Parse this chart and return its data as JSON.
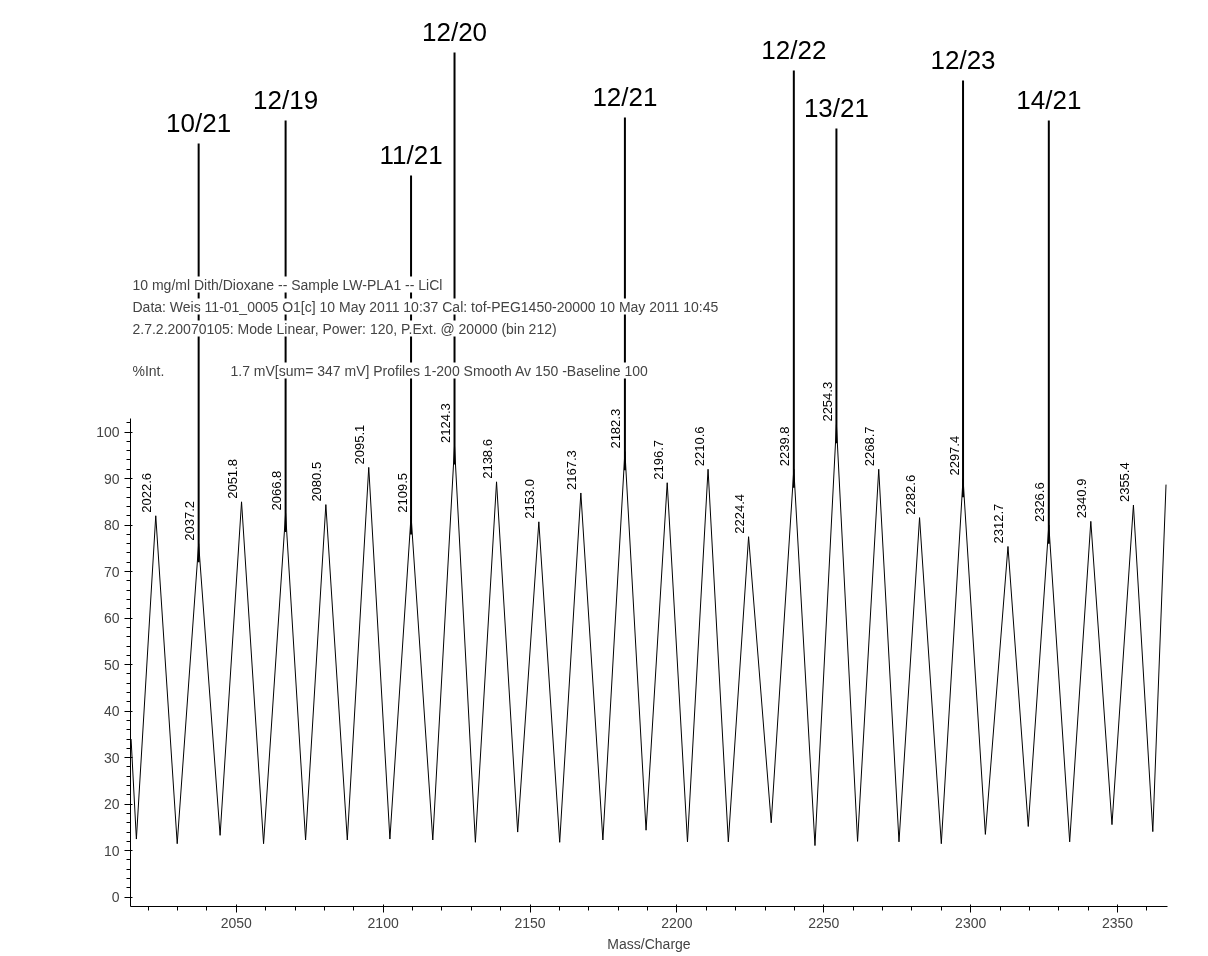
{
  "chart_data": {
    "type": "line",
    "title": "10 mg/ml Dith/Dioxane -- Sample LW-PLA1 -- LiCl",
    "xlabel": "Mass/Charge",
    "ylabel": "%Int.",
    "xlim": [
      2014,
      2367
    ],
    "ylim": [
      -2,
      103
    ],
    "xticks": [
      2050,
      2100,
      2150,
      2200,
      2250,
      2300,
      2350
    ],
    "yticks": [
      0,
      10,
      20,
      30,
      40,
      50,
      60,
      70,
      80,
      90,
      100
    ],
    "grid": false,
    "series": [
      {
        "color": "#000000",
        "x": [
          2014.2,
          2016,
          2022.6,
          2029.9,
          2037.2,
          2044.5,
          2051.8,
          2059.3,
          2066.8,
          2073.6,
          2080.5,
          2087.8,
          2095.1,
          2102.3,
          2109.5,
          2116.9,
          2124.3,
          2131.4,
          2138.6,
          2145.8,
          2153.0,
          2160.1,
          2167.3,
          2174.8,
          2182.3,
          2189.5,
          2196.7,
          2203.6,
          2210.6,
          2217.5,
          2224.4,
          2232.1,
          2239.8,
          2247.0,
          2254.3,
          2261.5,
          2268.7,
          2275.6,
          2282.6,
          2290.0,
          2297.4,
          2305.0,
          2312.7,
          2319.6,
          2326.6,
          2333.7,
          2340.9,
          2348.1,
          2355.4,
          2362.0,
          2366.5
        ],
        "values": [
          34,
          12.5,
          82,
          11.5,
          76,
          13.3,
          85,
          11.5,
          82.5,
          12.3,
          84.4,
          12.3,
          92.4,
          12.5,
          82,
          12.3,
          97,
          11.8,
          89.3,
          14,
          80.7,
          11.8,
          86.9,
          12.3,
          95.8,
          14.4,
          89.1,
          11.9,
          92,
          11.9,
          77.5,
          16,
          92,
          11.1,
          101.6,
          12,
          92,
          11.9,
          81.6,
          11.5,
          90,
          13.5,
          75.4,
          15.2,
          80,
          11.9,
          80.8,
          15.6,
          84.3,
          14.1,
          88.7
        ]
      }
    ],
    "annotations": [
      "Data: Weis 11-01_0005 O1[c] 10 May 2011 10:37 Cal: tof-PEG1450-20000 10 May 2011 10:45",
      "2.7.2.20070105: Mode Linear, Power: 120, P.Ext. @ 20000 (bin 212)",
      "1.7 mV[sum= 347 mV]  Profiles 1-200 Smooth Av 150 -Baseline 100",
      {
        "text": "2022.6",
        "x": 2022.6,
        "y": 82
      },
      {
        "text": "2037.2",
        "x": 2037.2,
        "y": 76
      },
      {
        "text": "2051.8",
        "x": 2051.8,
        "y": 85
      },
      {
        "text": "2066.8",
        "x": 2066.8,
        "y": 82.5
      },
      {
        "text": "2080.5",
        "x": 2080.5,
        "y": 84.4
      },
      {
        "text": "2095.1",
        "x": 2095.1,
        "y": 92.4
      },
      {
        "text": "2109.5",
        "x": 2109.5,
        "y": 82
      },
      {
        "text": "2124.3",
        "x": 2124.3,
        "y": 97
      },
      {
        "text": "2138.6",
        "x": 2138.6,
        "y": 89.3
      },
      {
        "text": "2153.0",
        "x": 2153.0,
        "y": 80.7
      },
      {
        "text": "2167.3",
        "x": 2167.3,
        "y": 86.9
      },
      {
        "text": "2182.3",
        "x": 2182.3,
        "y": 95.8
      },
      {
        "text": "2196.7",
        "x": 2196.7,
        "y": 89.1
      },
      {
        "text": "2210.6",
        "x": 2210.6,
        "y": 92
      },
      {
        "text": "2224.4",
        "x": 2224.4,
        "y": 77.5
      },
      {
        "text": "2239.8",
        "x": 2239.8,
        "y": 92
      },
      {
        "text": "2254.3",
        "x": 2254.3,
        "y": 101.6
      },
      {
        "text": "2268.7",
        "x": 2268.7,
        "y": 92
      },
      {
        "text": "2282.6",
        "x": 2282.6,
        "y": 81.6
      },
      {
        "text": "2297.4",
        "x": 2297.4,
        "y": 90
      },
      {
        "text": "2312.7",
        "x": 2312.7,
        "y": 75.4
      },
      {
        "text": "2326.6",
        "x": 2326.6,
        "y": 80
      },
      {
        "text": "2340.9",
        "x": 2340.9,
        "y": 80.8
      },
      {
        "text": "2355.4",
        "x": 2355.4,
        "y": 84.3
      },
      {
        "text": "10/21",
        "x": 2037.2
      },
      {
        "text": "12/19",
        "x": 2066.8
      },
      {
        "text": "11/21",
        "x": 2109.5
      },
      {
        "text": "12/20",
        "x": 2124.3
      },
      {
        "text": "12/21",
        "x": 2182.3
      },
      {
        "text": "12/22",
        "x": 2239.8
      },
      {
        "text": "13/21",
        "x": 2254.3
      },
      {
        "text": "12/23",
        "x": 2297.4
      },
      {
        "text": "14/21",
        "x": 2326.6
      }
    ]
  }
}
